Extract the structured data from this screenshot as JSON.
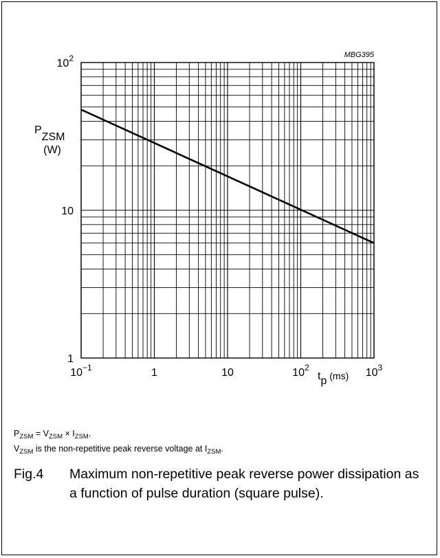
{
  "chart_data": {
    "type": "line",
    "id_label": "MBG395",
    "x_scale": "log",
    "y_scale": "log",
    "xlim": [
      0.1,
      1000
    ],
    "ylim": [
      1,
      100
    ],
    "x_ticks": [
      {
        "value": 0.1,
        "base": "10",
        "exp": "−1"
      },
      {
        "value": 1,
        "base": "1",
        "exp": ""
      },
      {
        "value": 10,
        "base": "10",
        "exp": ""
      },
      {
        "value": 100,
        "base": "10",
        "exp": "2"
      },
      {
        "value": 1000,
        "base": "10",
        "exp": "3"
      }
    ],
    "y_ticks": [
      {
        "value": 1,
        "base": "1",
        "exp": ""
      },
      {
        "value": 10,
        "base": "10",
        "exp": ""
      },
      {
        "value": 100,
        "base": "10",
        "exp": "2"
      }
    ],
    "ylabel": {
      "main": "P",
      "sub": "ZSM",
      "unit": "(W)"
    },
    "xlabel": {
      "main": "t",
      "sub": "p",
      "unit": " (ms)"
    },
    "grid": true,
    "series": [
      {
        "x": [
          0.1,
          1000
        ],
        "y": [
          48,
          6
        ]
      }
    ]
  },
  "notes": {
    "line1": {
      "p": "P",
      "p_sub": "ZSM",
      "eq": " = V",
      "v_sub": "ZSM",
      "times": " × I",
      "i_sub": "ZSM",
      "end": "."
    },
    "line2": {
      "v": "V",
      "v_sub": "ZSM",
      "text": " is the non-repetitive peak reverse voltage at I",
      "i_sub": "ZSM",
      "end": "."
    }
  },
  "caption": {
    "fig": "Fig.4",
    "text": "Maximum non-repetitive peak reverse power dissipation as a function of pulse duration (square pulse)."
  }
}
